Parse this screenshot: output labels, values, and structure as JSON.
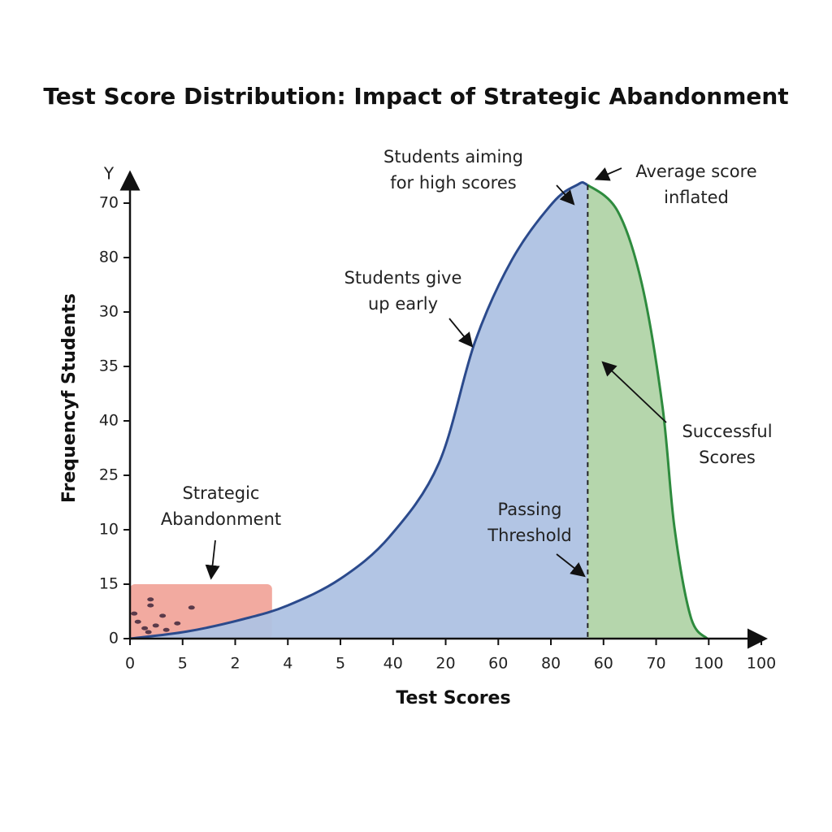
{
  "chart_data": {
    "type": "area",
    "title": "Test Score Distribution: Impact of Strategic Abandonment",
    "xlabel": "Test Scores",
    "ylabel": "Frequencyf Students",
    "y_axis_letter": "Y",
    "xlim": [
      0,
      12.2
    ],
    "ylim": [
      0,
      8.5
    ],
    "xticks": [
      {
        "value": 0,
        "label": "0"
      },
      {
        "value": 1,
        "label": "5"
      },
      {
        "value": 2,
        "label": "2"
      },
      {
        "value": 3,
        "label": "4"
      },
      {
        "value": 4,
        "label": "5"
      },
      {
        "value": 5,
        "label": "40"
      },
      {
        "value": 6,
        "label": "20"
      },
      {
        "value": 7,
        "label": "60"
      },
      {
        "value": 8,
        "label": "80"
      },
      {
        "value": 9,
        "label": "60"
      },
      {
        "value": 10,
        "label": "70"
      },
      {
        "value": 11,
        "label": "100"
      },
      {
        "value": 12,
        "label": "100"
      }
    ],
    "yticks": [
      {
        "value": 0,
        "label": "0"
      },
      {
        "value": 1,
        "label": "15"
      },
      {
        "value": 2,
        "label": "10"
      },
      {
        "value": 3,
        "label": "25"
      },
      {
        "value": 4,
        "label": "40"
      },
      {
        "value": 5,
        "label": "35"
      },
      {
        "value": 6,
        "label": "30"
      },
      {
        "value": 7,
        "label": "80"
      },
      {
        "value": 8,
        "label": "70"
      }
    ],
    "x": [
      0,
      1.08,
      2.16,
      3.0,
      4.0,
      4.94,
      5.87,
      6.56,
      7.26,
      8.03,
      8.49,
      8.7,
      9.27,
      9.73,
      10.12,
      10.35,
      10.66,
      10.97
    ],
    "values": [
      0,
      0.13,
      0.36,
      0.61,
      1.1,
      1.88,
      3.22,
      5.46,
      6.96,
      8.0,
      8.33,
      8.33,
      7.85,
      6.51,
      4.27,
      2.03,
      0.39,
      0
    ],
    "threshold": 8.7,
    "colors": {
      "low_line": "#2b4a8c",
      "low_fill": "#aec2e3",
      "high_line": "#2e8b3e",
      "high_fill": "#b5d6ac",
      "band": "#f2aaa0",
      "dots": "#5a3a4a"
    },
    "abandon_band": {
      "x": [
        0,
        2.7
      ],
      "height": 1
    },
    "dots": {
      "x": [
        0.08,
        0.15,
        0.28,
        0.39,
        0.39,
        0.49,
        0.62,
        0.69,
        0.9,
        1.17,
        0.35
      ],
      "y": [
        0.46,
        0.31,
        0.19,
        0.61,
        0.72,
        0.24,
        0.42,
        0.16,
        0.28,
        0.57,
        0.12
      ]
    },
    "annotations": [
      [
        "Students aiming",
        "for high scores"
      ],
      [
        "Average score",
        "inflated"
      ],
      [
        "Students give",
        "up early"
      ],
      [
        "Successful",
        "Scores"
      ],
      [
        "Passing",
        "Threshold"
      ],
      [
        "Strategic",
        "Abandonment"
      ]
    ]
  }
}
